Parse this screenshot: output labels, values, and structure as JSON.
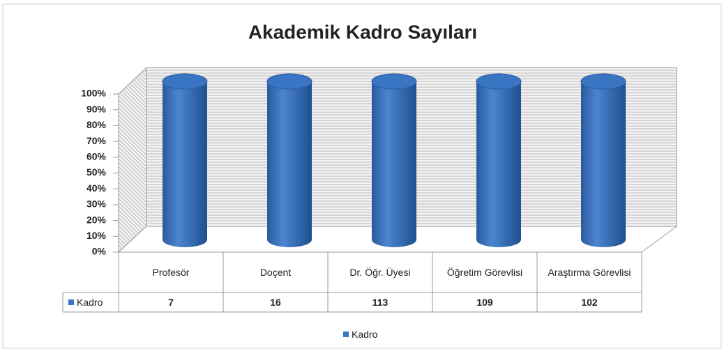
{
  "chart_data": {
    "type": "bar",
    "stacking": "percent",
    "title": "Akademik Kadro Sayıları",
    "categories": [
      "Profesör",
      "Doçent",
      "Dr. Öğr. Üyesi",
      "Öğretim Görevlisi",
      "Araştırma Görevlisi"
    ],
    "series": [
      {
        "name": "Kadro",
        "color": "#3a75c4",
        "values": [
          7,
          16,
          113,
          109,
          102
        ]
      }
    ],
    "ylim": [
      0,
      100
    ],
    "yticks": [
      {
        "value": 0,
        "label": "0%"
      },
      {
        "value": 10,
        "label": "10%"
      },
      {
        "value": 20,
        "label": "20%"
      },
      {
        "value": 30,
        "label": "30%"
      },
      {
        "value": 40,
        "label": "40%"
      },
      {
        "value": 50,
        "label": "50%"
      },
      {
        "value": 60,
        "label": "60%"
      },
      {
        "value": 70,
        "label": "70%"
      },
      {
        "value": 80,
        "label": "80%"
      },
      {
        "value": 90,
        "label": "90%"
      },
      {
        "value": 100,
        "label": "100%"
      }
    ],
    "legend": "bottom"
  }
}
